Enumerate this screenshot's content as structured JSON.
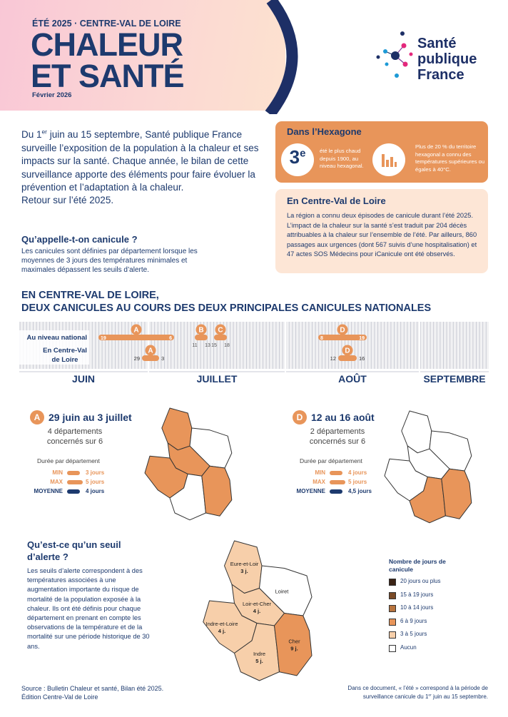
{
  "header": {
    "kicker": "ÉTÉ 2025 · CENTRE-VAL DE LOIRE",
    "title": [
      "CHALEUR",
      "ET SANTÉ"
    ],
    "date": "Février 2026",
    "logo": [
      "Santé",
      "publique",
      "France"
    ]
  },
  "intro": {
    "lead": [
      "Du 1",
      "er",
      " juin au 15 septembre, Santé publique France surveille l’exposition de la population à la chaleur et ses impacts sur la santé. Chaque année, le bilan de cette surveillance apporte des éléments pour faire évoluer la prévention et l’adaptation à la chaleur."
    ],
    "retour": "Retour sur l’été 2025."
  },
  "canicule": {
    "title": "Qu’appelle-t-on canicule ?",
    "text": "Les canicules sont définies par département lorsque les moyennes de 3 jours des températures minimales et maximales dépassent les seuils d’alerte."
  },
  "hexagone": {
    "title": "Dans l’Hexagone",
    "rank": "3",
    "rank_sup": "e",
    "rank_text": "été le plus chaud depuis 1900, au niveau hexagonal.",
    "stat_text": "Plus de 20 % du territoire hexagonal a connu des températures supérieures ou égales à 40°C."
  },
  "region": {
    "title": "En Centre-Val de Loire",
    "text": "La région a connu deux épisodes de canicule durant l’été 2025. L’impact de la chaleur sur la santé s’est traduit par 204 décès attribuables à la chaleur sur l’ensemble de l’été. Par ailleurs, 860 passages aux urgences (dont 567 suivis d’une hospitalisation) et 47 actes SOS Médecins pour iCanicule ont été observés."
  },
  "timeline": {
    "title": [
      "EN CENTRE-VAL DE LOIRE,",
      "DEUX CANICULES AU COURS DES DEUX PRINCIPALES CANICULES NATIONALES"
    ],
    "rows": [
      "Au niveau national",
      "En Centre-Val de Loire"
    ],
    "months": [
      "JUIN",
      "JUILLET",
      "AOÛT",
      "SEPTEMBRE"
    ],
    "national": [
      {
        "letter": "A",
        "start": 19,
        "end": 6
      },
      {
        "letter": "B",
        "start": 11,
        "end": 13
      },
      {
        "letter": "C",
        "start": 15,
        "end": 18
      },
      {
        "letter": "D",
        "start": 8,
        "end": 19
      }
    ],
    "regional": [
      {
        "letter": "A",
        "start": 29,
        "end": 3
      },
      {
        "letter": "D",
        "start": 12,
        "end": 16
      }
    ]
  },
  "episodes": [
    {
      "letter": "A",
      "dates": "29 juin au 3 juillet",
      "count": "4 départements concernés sur 6",
      "duree_title": "Durée par département",
      "stats": [
        {
          "label": "MIN",
          "value": "3 jours"
        },
        {
          "label": "MAX",
          "value": "5 jours"
        },
        {
          "label": "MOYENNE",
          "value": "4 jours"
        }
      ],
      "fills": [
        "#e8955a",
        "#ffffff",
        "#e8955a",
        "#e8955a",
        "#ffffff",
        "#e8955a"
      ]
    },
    {
      "letter": "D",
      "dates": "12 au 16 août",
      "count": "2 départements concernés sur 6",
      "duree_title": "Durée par département",
      "stats": [
        {
          "label": "MIN",
          "value": "4 jours"
        },
        {
          "label": "MAX",
          "value": "5 jours"
        },
        {
          "label": "MOYENNE",
          "value": "4,5 jours"
        }
      ],
      "fills": [
        "#ffffff",
        "#ffffff",
        "#ffffff",
        "#ffffff",
        "#e8955a",
        "#e8955a"
      ]
    }
  ],
  "seuil": {
    "title": [
      "Qu’est-ce qu’un seuil",
      "d’alerte ?"
    ],
    "text": "Les seuils d’alerte correspondent à des températures associées à une augmentation importante du risque de mortalité de la population exposée à la chaleur. Ils ont été définis pour chaque département en prenant en compte les observations de la température et de la mortalité sur une période historique de 30 ans."
  },
  "map": {
    "departments": [
      {
        "name": "Eure-et-Loir",
        "days": "3 j.",
        "color": "#f7cfaa"
      },
      {
        "name": "Loiret",
        "color": "#ffffff"
      },
      {
        "name": "Loir-et-Cher",
        "days": "4 j.",
        "color": "#f7cfaa"
      },
      {
        "name": "Indre-et-Loire",
        "days": "4 j.",
        "color": "#f7cfaa"
      },
      {
        "name": "Indre",
        "days": "5 j.",
        "color": "#f7cfaa"
      },
      {
        "name": "Cher",
        "days": "9 j.",
        "color": "#e8955a"
      }
    ]
  },
  "legend": {
    "title": "Nombre de jours de canicule",
    "items": [
      {
        "label": "20 jours ou plus",
        "color": "#3b2314"
      },
      {
        "label": "15 à 19 jours",
        "color": "#7a4a26"
      },
      {
        "label": "10 à 14 jours",
        "color": "#b8743e"
      },
      {
        "label": "6 à 9 jours",
        "color": "#e8955a"
      },
      {
        "label": "3 à 5 jours",
        "color": "#f7cfaa"
      },
      {
        "label": "Aucun",
        "color": "#ffffff"
      }
    ]
  },
  "footer": {
    "source": [
      "Source : Bulletin Chaleur et santé, Bilan été 2025.",
      "Édition Centre-Val de Loire"
    ],
    "note": [
      "Dans ce document, « l’été » correspond à la période de",
      "surveillance canicule du 1",
      "er",
      " juin au 15 septembre."
    ]
  }
}
